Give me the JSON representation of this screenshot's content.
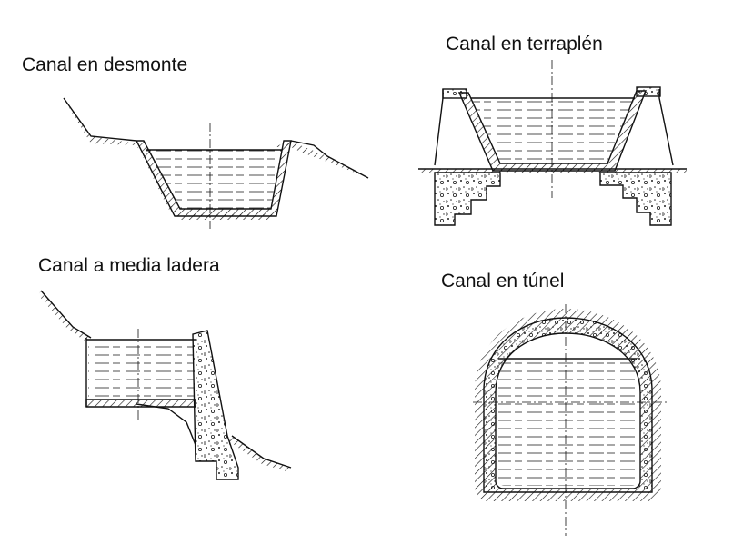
{
  "labels": {
    "desmonte": "Canal en desmonte",
    "terraplen": "Canal en terraplén",
    "media_ladera": "Canal a media ladera",
    "tunel": "Canal en túnel"
  },
  "colors": {
    "ink": "#111111",
    "background": "#ffffff"
  }
}
